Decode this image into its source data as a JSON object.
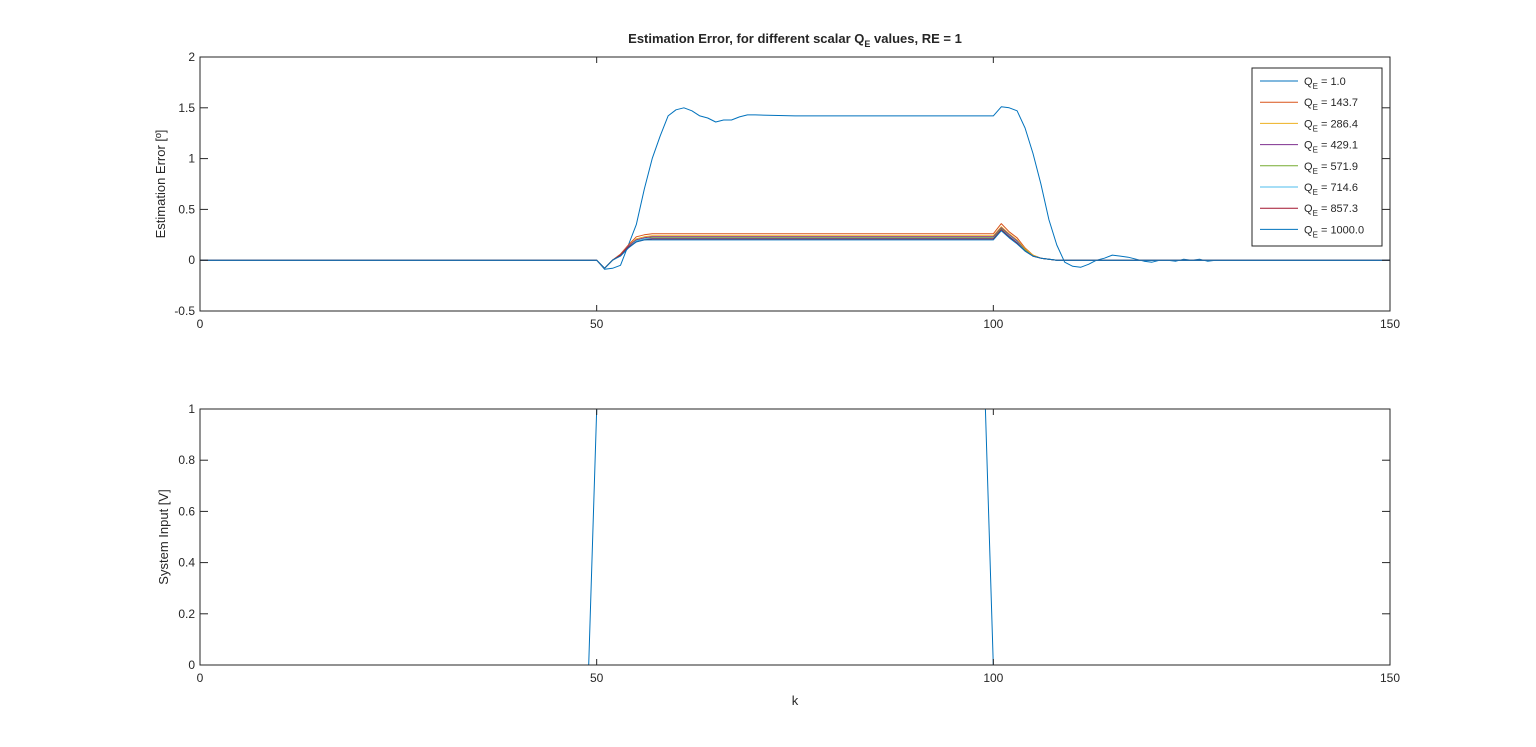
{
  "chart_data": [
    {
      "type": "line",
      "title": "Estimation Error, for different scalar Q",
      "title_sub": "E",
      "title_tail": " values, RE = 1",
      "xlabel": "",
      "ylabel": "Estimation Error [º]",
      "xlim": [
        0,
        150
      ],
      "ylim": [
        -0.5,
        2
      ],
      "xticks": [
        "0",
        "50",
        "100",
        "150"
      ],
      "yticks": [
        "-0.5",
        "0",
        "0.5",
        "1",
        "1.5",
        "2"
      ],
      "grid": false,
      "legend_position": "top-right",
      "x": [
        0,
        49,
        50,
        51,
        52,
        53,
        54,
        55,
        56,
        57,
        58,
        59,
        60,
        61,
        62,
        63,
        64,
        65,
        66,
        67,
        68,
        69,
        70,
        75,
        80,
        85,
        90,
        95,
        100,
        101,
        102,
        103,
        104,
        105,
        106,
        107,
        108,
        109,
        110,
        111,
        112,
        113,
        114,
        115,
        116,
        117,
        118,
        119,
        120,
        121,
        122,
        123,
        124,
        125,
        126,
        127,
        128,
        130,
        135,
        140,
        145,
        150
      ],
      "series": [
        {
          "name": "Q",
          "sub": "E",
          "tail": " = 1.0",
          "color": "#0072BD",
          "values": [
            0,
            0,
            0,
            -0.09,
            -0.08,
            -0.05,
            0.15,
            0.35,
            0.7,
            1.0,
            1.22,
            1.42,
            1.48,
            1.5,
            1.47,
            1.42,
            1.4,
            1.36,
            1.38,
            1.38,
            1.41,
            1.43,
            1.43,
            1.42,
            1.42,
            1.42,
            1.42,
            1.42,
            1.42,
            1.51,
            1.5,
            1.47,
            1.3,
            1.05,
            0.75,
            0.4,
            0.15,
            -0.02,
            -0.06,
            -0.07,
            -0.04,
            0.0,
            0.02,
            0.05,
            0.04,
            0.03,
            0.01,
            -0.01,
            -0.02,
            0.0,
            0.0,
            -0.01,
            0.01,
            0.0,
            0.01,
            -0.01,
            0.0,
            0.0,
            0.0,
            0.0,
            0.0,
            0.0
          ]
        },
        {
          "name": "Q",
          "sub": "E",
          "tail": " = 143.7",
          "color": "#D95319",
          "values": [
            0,
            0,
            0,
            -0.08,
            0.0,
            0.06,
            0.15,
            0.23,
            0.25,
            0.26,
            0.26,
            0.26,
            0.26,
            0.26,
            0.26,
            0.26,
            0.26,
            0.26,
            0.26,
            0.26,
            0.26,
            0.26,
            0.26,
            0.26,
            0.26,
            0.26,
            0.26,
            0.26,
            0.26,
            0.36,
            0.28,
            0.22,
            0.12,
            0.05,
            0.02,
            0.01,
            0.0,
            0.0,
            0.0,
            0.0,
            0.0,
            0.0,
            0.0,
            0.0,
            0.0,
            0.0,
            0.0,
            0.0,
            0.0,
            0.0,
            0.0,
            0.0,
            0.0,
            0.0,
            0.0,
            0.0,
            0.0,
            0.0,
            0.0,
            0.0,
            0.0,
            0.0
          ]
        },
        {
          "name": "Q",
          "sub": "E",
          "tail": " = 286.4",
          "color": "#EDB120",
          "values": [
            0,
            0,
            0,
            -0.08,
            0.0,
            0.05,
            0.14,
            0.21,
            0.23,
            0.24,
            0.24,
            0.24,
            0.24,
            0.24,
            0.24,
            0.24,
            0.24,
            0.24,
            0.24,
            0.24,
            0.24,
            0.24,
            0.24,
            0.24,
            0.24,
            0.24,
            0.24,
            0.24,
            0.24,
            0.33,
            0.26,
            0.2,
            0.11,
            0.05,
            0.02,
            0.01,
            0.0,
            0.0,
            0.0,
            0.0,
            0.0,
            0.0,
            0.0,
            0.0,
            0.0,
            0.0,
            0.0,
            0.0,
            0.0,
            0.0,
            0.0,
            0.0,
            0.0,
            0.0,
            0.0,
            0.0,
            0.0,
            0.0,
            0.0,
            0.0,
            0.0,
            0.0
          ]
        },
        {
          "name": "Q",
          "sub": "E",
          "tail": " = 429.1",
          "color": "#7E2F8E",
          "values": [
            0,
            0,
            0,
            -0.08,
            0.0,
            0.05,
            0.14,
            0.2,
            0.22,
            0.23,
            0.23,
            0.23,
            0.23,
            0.23,
            0.23,
            0.23,
            0.23,
            0.23,
            0.23,
            0.23,
            0.23,
            0.23,
            0.23,
            0.23,
            0.23,
            0.23,
            0.23,
            0.23,
            0.23,
            0.32,
            0.25,
            0.19,
            0.1,
            0.04,
            0.02,
            0.01,
            0.0,
            0.0,
            0.0,
            0.0,
            0.0,
            0.0,
            0.0,
            0.0,
            0.0,
            0.0,
            0.0,
            0.0,
            0.0,
            0.0,
            0.0,
            0.0,
            0.0,
            0.0,
            0.0,
            0.0,
            0.0,
            0.0,
            0.0,
            0.0,
            0.0,
            0.0
          ]
        },
        {
          "name": "Q",
          "sub": "E",
          "tail": " = 571.9",
          "color": "#77AC30",
          "values": [
            0,
            0,
            0,
            -0.08,
            0.0,
            0.05,
            0.13,
            0.19,
            0.21,
            0.22,
            0.22,
            0.22,
            0.22,
            0.22,
            0.22,
            0.22,
            0.22,
            0.22,
            0.22,
            0.22,
            0.22,
            0.22,
            0.22,
            0.22,
            0.22,
            0.22,
            0.22,
            0.22,
            0.22,
            0.31,
            0.24,
            0.18,
            0.1,
            0.04,
            0.02,
            0.01,
            0.0,
            0.0,
            0.0,
            0.0,
            0.0,
            0.0,
            0.0,
            0.0,
            0.0,
            0.0,
            0.0,
            0.0,
            0.0,
            0.0,
            0.0,
            0.0,
            0.0,
            0.0,
            0.0,
            0.0,
            0.0,
            0.0,
            0.0,
            0.0,
            0.0,
            0.0
          ]
        },
        {
          "name": "Q",
          "sub": "E",
          "tail": " = 714.6",
          "color": "#4DBEEE",
          "values": [
            0,
            0,
            0,
            -0.08,
            0.0,
            0.05,
            0.13,
            0.19,
            0.21,
            0.215,
            0.215,
            0.215,
            0.215,
            0.215,
            0.215,
            0.215,
            0.215,
            0.215,
            0.215,
            0.215,
            0.215,
            0.215,
            0.215,
            0.215,
            0.215,
            0.215,
            0.215,
            0.215,
            0.215,
            0.3,
            0.24,
            0.18,
            0.09,
            0.04,
            0.02,
            0.01,
            0.0,
            0.0,
            0.0,
            0.0,
            0.0,
            0.0,
            0.0,
            0.0,
            0.0,
            0.0,
            0.0,
            0.0,
            0.0,
            0.0,
            0.0,
            0.0,
            0.0,
            0.0,
            0.0,
            0.0,
            0.0,
            0.0,
            0.0,
            0.0,
            0.0,
            0.0
          ]
        },
        {
          "name": "Q",
          "sub": "E",
          "tail": " = 857.3",
          "color": "#A2142F",
          "values": [
            0,
            0,
            0,
            -0.08,
            0.0,
            0.05,
            0.13,
            0.18,
            0.2,
            0.21,
            0.21,
            0.21,
            0.21,
            0.21,
            0.21,
            0.21,
            0.21,
            0.21,
            0.21,
            0.21,
            0.21,
            0.21,
            0.21,
            0.21,
            0.21,
            0.21,
            0.21,
            0.21,
            0.21,
            0.3,
            0.23,
            0.17,
            0.09,
            0.04,
            0.02,
            0.01,
            0.0,
            0.0,
            0.0,
            0.0,
            0.0,
            0.0,
            0.0,
            0.0,
            0.0,
            0.0,
            0.0,
            0.0,
            0.0,
            0.0,
            0.0,
            0.0,
            0.0,
            0.0,
            0.0,
            0.0,
            0.0,
            0.0,
            0.0,
            0.0,
            0.0,
            0.0
          ]
        },
        {
          "name": "Q",
          "sub": "E",
          "tail": " = 1000.0",
          "color": "#0072BD",
          "values": [
            0,
            0,
            0,
            -0.08,
            0.0,
            0.04,
            0.12,
            0.18,
            0.2,
            0.2,
            0.2,
            0.2,
            0.2,
            0.2,
            0.2,
            0.2,
            0.2,
            0.2,
            0.2,
            0.2,
            0.2,
            0.2,
            0.2,
            0.2,
            0.2,
            0.2,
            0.2,
            0.2,
            0.2,
            0.29,
            0.22,
            0.16,
            0.09,
            0.04,
            0.02,
            0.01,
            0.0,
            0.0,
            0.0,
            0.0,
            0.0,
            0.0,
            0.0,
            0.0,
            0.0,
            0.0,
            0.0,
            0.0,
            0.0,
            0.0,
            0.0,
            0.0,
            0.0,
            0.0,
            0.0,
            0.0,
            0.0,
            0.0,
            0.0,
            0.0,
            0.0,
            0.0
          ]
        }
      ]
    },
    {
      "type": "line",
      "title": "",
      "xlabel": "k",
      "ylabel": "System Input [V]",
      "xlim": [
        0,
        150
      ],
      "ylim": [
        0,
        1
      ],
      "xticks": [
        "0",
        "50",
        "100",
        "150"
      ],
      "yticks": [
        "0",
        "0.2",
        "0.4",
        "0.6",
        "0.8",
        "1"
      ],
      "grid": false,
      "x": [
        0,
        49,
        50,
        99,
        100,
        150
      ],
      "series": [
        {
          "color": "#0072BD",
          "values": [
            0,
            0,
            1,
            1,
            0,
            0
          ]
        }
      ]
    }
  ]
}
